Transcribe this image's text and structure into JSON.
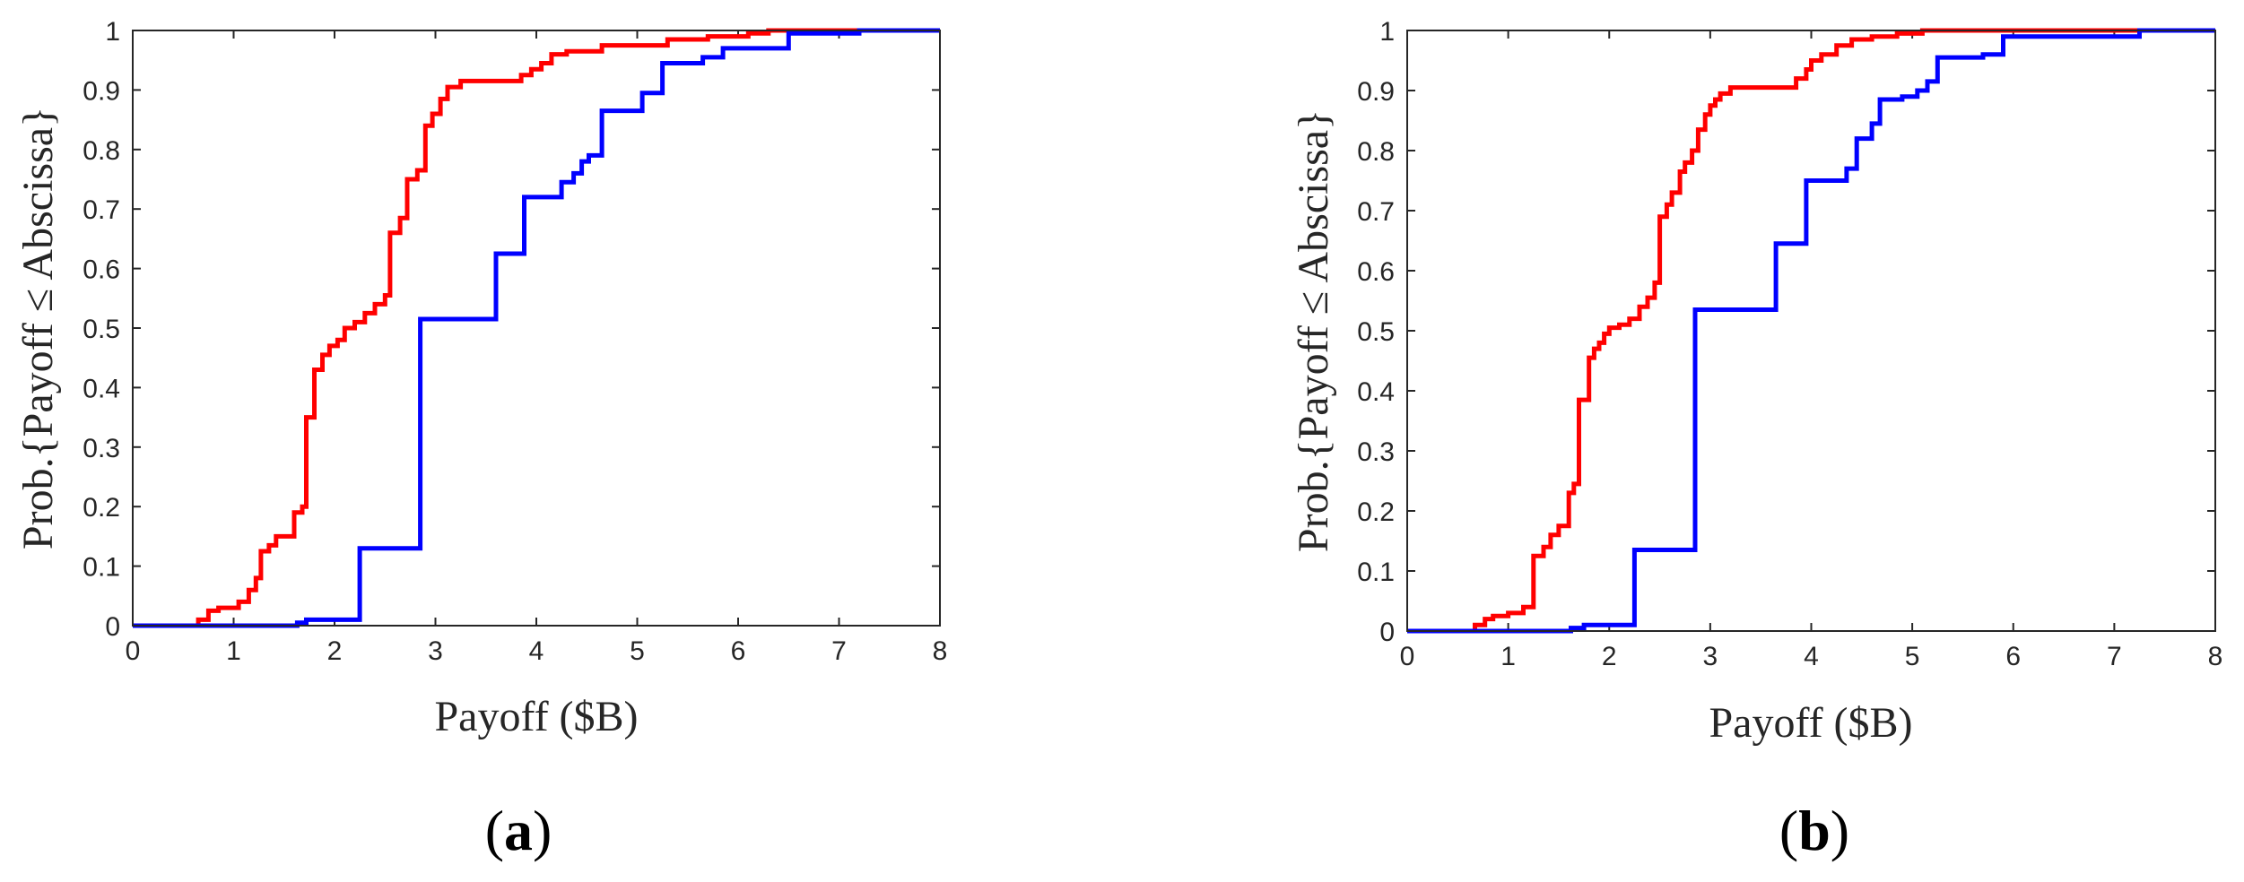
{
  "chart_data": [
    {
      "panel": "(a)",
      "panel_letter": "a",
      "type": "line",
      "step": true,
      "xlabel": "Payoff ($B)",
      "ylabel": "Prob.{Payoff ≤ Abscissa}",
      "xlim": [
        0,
        8
      ],
      "ylim": [
        0,
        1
      ],
      "xticks": [
        "0",
        "1",
        "2",
        "3",
        "4",
        "5",
        "6",
        "7",
        "8"
      ],
      "yticks": [
        "0",
        "0.1",
        "0.2",
        "0.3",
        "0.4",
        "0.5",
        "0.6",
        "0.7",
        "0.8",
        "0.9",
        "1"
      ],
      "grid": false,
      "series": [
        {
          "color": "#ff0000",
          "points": [
            [
              0,
              0
            ],
            [
              0.65,
              0
            ],
            [
              0.65,
              0.01
            ],
            [
              0.75,
              0.01
            ],
            [
              0.75,
              0.025
            ],
            [
              0.85,
              0.025
            ],
            [
              0.85,
              0.03
            ],
            [
              1.05,
              0.03
            ],
            [
              1.05,
              0.04
            ],
            [
              1.15,
              0.04
            ],
            [
              1.15,
              0.06
            ],
            [
              1.22,
              0.06
            ],
            [
              1.22,
              0.08
            ],
            [
              1.27,
              0.08
            ],
            [
              1.27,
              0.125
            ],
            [
              1.35,
              0.125
            ],
            [
              1.35,
              0.135
            ],
            [
              1.42,
              0.135
            ],
            [
              1.42,
              0.15
            ],
            [
              1.6,
              0.15
            ],
            [
              1.6,
              0.19
            ],
            [
              1.68,
              0.19
            ],
            [
              1.68,
              0.2
            ],
            [
              1.72,
              0.2
            ],
            [
              1.72,
              0.35
            ],
            [
              1.8,
              0.35
            ],
            [
              1.8,
              0.43
            ],
            [
              1.88,
              0.43
            ],
            [
              1.88,
              0.455
            ],
            [
              1.95,
              0.455
            ],
            [
              1.95,
              0.47
            ],
            [
              2.03,
              0.47
            ],
            [
              2.03,
              0.48
            ],
            [
              2.1,
              0.48
            ],
            [
              2.1,
              0.5
            ],
            [
              2.2,
              0.5
            ],
            [
              2.2,
              0.51
            ],
            [
              2.3,
              0.51
            ],
            [
              2.3,
              0.525
            ],
            [
              2.4,
              0.525
            ],
            [
              2.4,
              0.54
            ],
            [
              2.5,
              0.54
            ],
            [
              2.5,
              0.555
            ],
            [
              2.55,
              0.555
            ],
            [
              2.55,
              0.66
            ],
            [
              2.65,
              0.66
            ],
            [
              2.65,
              0.685
            ],
            [
              2.72,
              0.685
            ],
            [
              2.72,
              0.75
            ],
            [
              2.82,
              0.75
            ],
            [
              2.82,
              0.765
            ],
            [
              2.9,
              0.765
            ],
            [
              2.9,
              0.84
            ],
            [
              2.97,
              0.84
            ],
            [
              2.97,
              0.86
            ],
            [
              3.05,
              0.86
            ],
            [
              3.05,
              0.885
            ],
            [
              3.12,
              0.885
            ],
            [
              3.12,
              0.905
            ],
            [
              3.25,
              0.905
            ],
            [
              3.25,
              0.915
            ],
            [
              3.85,
              0.915
            ],
            [
              3.85,
              0.925
            ],
            [
              3.95,
              0.925
            ],
            [
              3.95,
              0.935
            ],
            [
              4.05,
              0.935
            ],
            [
              4.05,
              0.945
            ],
            [
              4.15,
              0.945
            ],
            [
              4.15,
              0.96
            ],
            [
              4.3,
              0.96
            ],
            [
              4.3,
              0.965
            ],
            [
              4.65,
              0.965
            ],
            [
              4.65,
              0.975
            ],
            [
              5.3,
              0.975
            ],
            [
              5.3,
              0.985
            ],
            [
              5.7,
              0.985
            ],
            [
              5.7,
              0.99
            ],
            [
              6.1,
              0.99
            ],
            [
              6.1,
              0.995
            ],
            [
              6.3,
              0.995
            ],
            [
              6.3,
              1
            ],
            [
              8,
              1
            ]
          ]
        },
        {
          "color": "#0000ff",
          "points": [
            [
              0,
              0
            ],
            [
              1.63,
              0
            ],
            [
              1.63,
              0.005
            ],
            [
              1.72,
              0.005
            ],
            [
              1.72,
              0.01
            ],
            [
              2.25,
              0.01
            ],
            [
              2.25,
              0.13
            ],
            [
              2.85,
              0.13
            ],
            [
              2.85,
              0.515
            ],
            [
              3.6,
              0.515
            ],
            [
              3.6,
              0.625
            ],
            [
              3.88,
              0.625
            ],
            [
              3.88,
              0.72
            ],
            [
              4.25,
              0.72
            ],
            [
              4.25,
              0.745
            ],
            [
              4.37,
              0.745
            ],
            [
              4.37,
              0.76
            ],
            [
              4.45,
              0.76
            ],
            [
              4.45,
              0.78
            ],
            [
              4.52,
              0.78
            ],
            [
              4.52,
              0.79
            ],
            [
              4.65,
              0.79
            ],
            [
              4.65,
              0.865
            ],
            [
              5.05,
              0.865
            ],
            [
              5.05,
              0.895
            ],
            [
              5.25,
              0.895
            ],
            [
              5.25,
              0.945
            ],
            [
              5.65,
              0.945
            ],
            [
              5.65,
              0.955
            ],
            [
              5.85,
              0.955
            ],
            [
              5.85,
              0.97
            ],
            [
              6.5,
              0.97
            ],
            [
              6.5,
              0.995
            ],
            [
              7.2,
              0.995
            ],
            [
              7.2,
              1
            ],
            [
              8,
              1
            ]
          ]
        }
      ]
    },
    {
      "panel": "(b)",
      "panel_letter": "b",
      "type": "line",
      "step": true,
      "xlabel": "Payoff ($B)",
      "ylabel": "Prob.{Payoff ≤ Abscissa}",
      "xlim": [
        0,
        8
      ],
      "ylim": [
        0,
        1
      ],
      "xticks": [
        "0",
        "1",
        "2",
        "3",
        "4",
        "5",
        "6",
        "7",
        "8"
      ],
      "yticks": [
        "0",
        "0.1",
        "0.2",
        "0.3",
        "0.4",
        "0.5",
        "0.6",
        "0.7",
        "0.8",
        "0.9",
        "1"
      ],
      "grid": false,
      "series": [
        {
          "color": "#ff0000",
          "points": [
            [
              0,
              0
            ],
            [
              0.67,
              0
            ],
            [
              0.67,
              0.01
            ],
            [
              0.77,
              0.01
            ],
            [
              0.77,
              0.02
            ],
            [
              0.85,
              0.02
            ],
            [
              0.85,
              0.025
            ],
            [
              1.0,
              0.025
            ],
            [
              1.0,
              0.03
            ],
            [
              1.15,
              0.03
            ],
            [
              1.15,
              0.04
            ],
            [
              1.25,
              0.04
            ],
            [
              1.25,
              0.125
            ],
            [
              1.35,
              0.125
            ],
            [
              1.35,
              0.14
            ],
            [
              1.42,
              0.14
            ],
            [
              1.42,
              0.16
            ],
            [
              1.5,
              0.16
            ],
            [
              1.5,
              0.175
            ],
            [
              1.6,
              0.175
            ],
            [
              1.6,
              0.23
            ],
            [
              1.65,
              0.23
            ],
            [
              1.65,
              0.245
            ],
            [
              1.7,
              0.245
            ],
            [
              1.7,
              0.385
            ],
            [
              1.8,
              0.385
            ],
            [
              1.8,
              0.455
            ],
            [
              1.85,
              0.455
            ],
            [
              1.85,
              0.47
            ],
            [
              1.9,
              0.47
            ],
            [
              1.9,
              0.48
            ],
            [
              1.95,
              0.48
            ],
            [
              1.95,
              0.495
            ],
            [
              2.0,
              0.495
            ],
            [
              2.0,
              0.505
            ],
            [
              2.1,
              0.505
            ],
            [
              2.1,
              0.51
            ],
            [
              2.2,
              0.51
            ],
            [
              2.2,
              0.52
            ],
            [
              2.3,
              0.52
            ],
            [
              2.3,
              0.54
            ],
            [
              2.38,
              0.54
            ],
            [
              2.38,
              0.555
            ],
            [
              2.45,
              0.555
            ],
            [
              2.45,
              0.58
            ],
            [
              2.5,
              0.58
            ],
            [
              2.5,
              0.69
            ],
            [
              2.57,
              0.69
            ],
            [
              2.57,
              0.71
            ],
            [
              2.62,
              0.71
            ],
            [
              2.62,
              0.73
            ],
            [
              2.7,
              0.73
            ],
            [
              2.7,
              0.765
            ],
            [
              2.75,
              0.765
            ],
            [
              2.75,
              0.78
            ],
            [
              2.82,
              0.78
            ],
            [
              2.82,
              0.8
            ],
            [
              2.88,
              0.8
            ],
            [
              2.88,
              0.835
            ],
            [
              2.95,
              0.835
            ],
            [
              2.95,
              0.86
            ],
            [
              3.0,
              0.86
            ],
            [
              3.0,
              0.875
            ],
            [
              3.05,
              0.875
            ],
            [
              3.05,
              0.885
            ],
            [
              3.1,
              0.885
            ],
            [
              3.1,
              0.895
            ],
            [
              3.2,
              0.895
            ],
            [
              3.2,
              0.905
            ],
            [
              3.85,
              0.905
            ],
            [
              3.85,
              0.92
            ],
            [
              3.95,
              0.92
            ],
            [
              3.95,
              0.935
            ],
            [
              4.0,
              0.935
            ],
            [
              4.0,
              0.95
            ],
            [
              4.1,
              0.95
            ],
            [
              4.1,
              0.96
            ],
            [
              4.25,
              0.96
            ],
            [
              4.25,
              0.975
            ],
            [
              4.4,
              0.975
            ],
            [
              4.4,
              0.985
            ],
            [
              4.6,
              0.985
            ],
            [
              4.6,
              0.99
            ],
            [
              4.85,
              0.99
            ],
            [
              4.85,
              0.995
            ],
            [
              5.1,
              0.995
            ],
            [
              5.1,
              1
            ],
            [
              8,
              1
            ]
          ]
        },
        {
          "color": "#0000ff",
          "points": [
            [
              0,
              0
            ],
            [
              1.62,
              0
            ],
            [
              1.62,
              0.005
            ],
            [
              1.75,
              0.005
            ],
            [
              1.75,
              0.01
            ],
            [
              2.25,
              0.01
            ],
            [
              2.25,
              0.135
            ],
            [
              2.85,
              0.135
            ],
            [
              2.85,
              0.535
            ],
            [
              3.65,
              0.535
            ],
            [
              3.65,
              0.645
            ],
            [
              3.95,
              0.645
            ],
            [
              3.95,
              0.75
            ],
            [
              4.35,
              0.75
            ],
            [
              4.35,
              0.77
            ],
            [
              4.45,
              0.77
            ],
            [
              4.45,
              0.82
            ],
            [
              4.6,
              0.82
            ],
            [
              4.6,
              0.845
            ],
            [
              4.68,
              0.845
            ],
            [
              4.68,
              0.885
            ],
            [
              4.9,
              0.885
            ],
            [
              4.9,
              0.89
            ],
            [
              5.05,
              0.89
            ],
            [
              5.05,
              0.9
            ],
            [
              5.15,
              0.9
            ],
            [
              5.15,
              0.915
            ],
            [
              5.25,
              0.915
            ],
            [
              5.25,
              0.955
            ],
            [
              5.7,
              0.955
            ],
            [
              5.7,
              0.96
            ],
            [
              5.9,
              0.96
            ],
            [
              5.9,
              0.99
            ],
            [
              7.25,
              0.99
            ],
            [
              7.25,
              1
            ],
            [
              8,
              1
            ]
          ]
        }
      ]
    }
  ]
}
